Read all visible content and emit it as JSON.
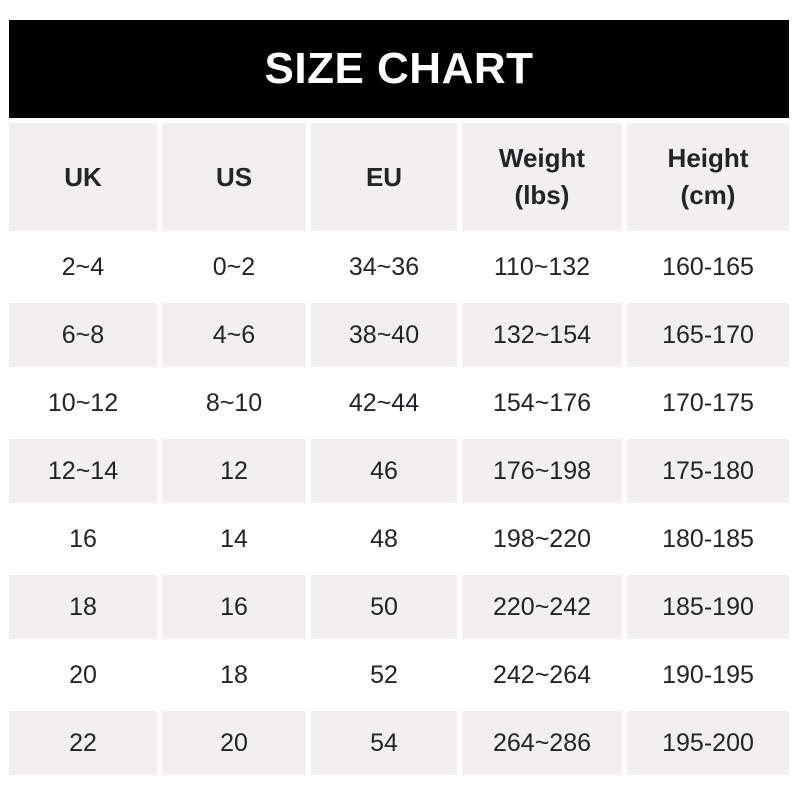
{
  "chart_data": {
    "type": "table",
    "title": "SIZE CHART",
    "columns": [
      {
        "label": "UK",
        "unit": ""
      },
      {
        "label": "US",
        "unit": ""
      },
      {
        "label": "EU",
        "unit": ""
      },
      {
        "label": "Weight",
        "unit": "(lbs)"
      },
      {
        "label": "Height",
        "unit": "(cm)"
      }
    ],
    "rows": [
      [
        "2~4",
        "0~2",
        "34~36",
        "110~132",
        "160-165"
      ],
      [
        "6~8",
        "4~6",
        "38~40",
        "132~154",
        "165-170"
      ],
      [
        "10~12",
        "8~10",
        "42~44",
        "154~176",
        "170-175"
      ],
      [
        "12~14",
        "12",
        "46",
        "176~198",
        "175-180"
      ],
      [
        "16",
        "14",
        "48",
        "198~220",
        "180-185"
      ],
      [
        "18",
        "16",
        "50",
        "220~242",
        "185-190"
      ],
      [
        "20",
        "18",
        "52",
        "242~264",
        "190-195"
      ],
      [
        "22",
        "20",
        "54",
        "264~286",
        "195-200"
      ]
    ],
    "layout": {
      "striped_rows": "alternating",
      "header_background": "striped",
      "grid": "off"
    }
  },
  "colors": {
    "banner_bg": "#000000",
    "banner_text": "#ffffff",
    "row_stripe": "#f1f0ef",
    "cell_text": "#222428"
  }
}
